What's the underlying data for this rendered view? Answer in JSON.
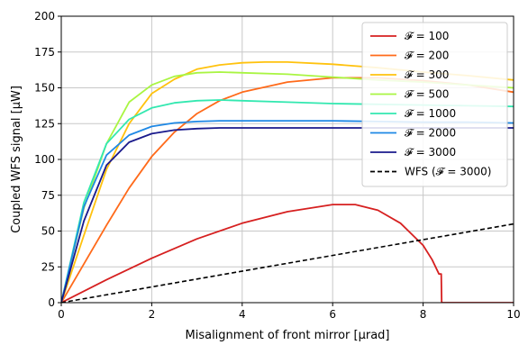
{
  "chart_data": {
    "type": "line",
    "title": "",
    "xlabel": "Misalignment of front mirror [μrad]",
    "ylabel": "Coupled WFS signal [μW]",
    "xlim": [
      0,
      10
    ],
    "ylim": [
      0,
      200
    ],
    "xticks": [
      0,
      2,
      4,
      6,
      8,
      10
    ],
    "yticks": [
      0,
      25,
      50,
      75,
      100,
      125,
      150,
      175,
      200
    ],
    "grid": true,
    "legend_position": "top-right",
    "series": [
      {
        "name": "𝓕 = 100",
        "color": "#d62020",
        "dash": "solid",
        "x": [
          0,
          1,
          2,
          3,
          4,
          5,
          6,
          6.5,
          7,
          7.5,
          8,
          8.2,
          8.35,
          8.4,
          8.41,
          9,
          10
        ],
        "y": [
          0,
          16,
          31,
          44.5,
          55.5,
          63.5,
          68.5,
          68.5,
          64.5,
          55.5,
          40,
          30,
          20,
          20,
          0,
          0,
          0
        ]
      },
      {
        "name": "𝓕 = 200",
        "color": "#ff6a1a",
        "dash": "solid",
        "x": [
          0,
          0.5,
          1,
          1.5,
          2,
          2.5,
          3,
          3.5,
          4,
          5,
          6,
          7,
          8,
          9,
          10
        ],
        "y": [
          0,
          27,
          54,
          80,
          102,
          119,
          132,
          141,
          147,
          154,
          157,
          157,
          155,
          152,
          147
        ]
      },
      {
        "name": "𝓕 = 300",
        "color": "#ffc20e",
        "dash": "solid",
        "x": [
          0,
          0.5,
          1,
          1.5,
          2,
          2.5,
          3,
          3.5,
          4,
          4.5,
          5,
          6,
          7,
          8,
          9,
          10
        ],
        "y": [
          0,
          47,
          93,
          125,
          146,
          156,
          163,
          166,
          167.5,
          168,
          168,
          166.5,
          164,
          161,
          158.5,
          155.5
        ]
      },
      {
        "name": "𝓕 = 500",
        "color": "#a9f542",
        "dash": "solid",
        "x": [
          0,
          0.5,
          1,
          1.5,
          2,
          2.5,
          3,
          3.5,
          4,
          5,
          6,
          7,
          8,
          9,
          10
        ],
        "y": [
          0,
          66,
          111,
          140,
          152,
          158,
          160.5,
          161,
          160.5,
          159.5,
          157.5,
          155.5,
          154,
          152,
          150
        ]
      },
      {
        "name": "𝓕 = 1000",
        "color": "#33e8b0",
        "dash": "solid",
        "x": [
          0,
          0.5,
          1,
          1.5,
          2,
          2.5,
          3,
          3.5,
          4,
          5,
          6,
          7,
          8,
          9,
          10
        ],
        "y": [
          0,
          70,
          111,
          128,
          136,
          139.5,
          141,
          141.5,
          141,
          140,
          139,
          138.5,
          138,
          137.5,
          137
        ]
      },
      {
        "name": "𝓕 = 2000",
        "color": "#1e88e5",
        "dash": "solid",
        "x": [
          0,
          0.5,
          1,
          1.5,
          2,
          2.5,
          3,
          3.5,
          4,
          5,
          6,
          7,
          8,
          9,
          10
        ],
        "y": [
          0,
          67,
          103,
          117,
          123,
          125.5,
          126.5,
          127,
          127,
          127,
          127,
          126.5,
          126,
          126,
          125.5
        ]
      },
      {
        "name": "𝓕 = 3000",
        "color": "#1a1a8c",
        "dash": "solid",
        "x": [
          0,
          0.5,
          1,
          1.5,
          2,
          2.5,
          3,
          3.5,
          4,
          5,
          6,
          7,
          8,
          9,
          10
        ],
        "y": [
          0,
          57,
          96,
          112,
          118,
          120.5,
          121.5,
          122,
          122,
          122,
          122,
          122,
          122,
          122,
          122
        ]
      },
      {
        "name": "WFS (𝓕 = 3000)",
        "color": "#000000",
        "dash": "dashed",
        "x": [
          0,
          10
        ],
        "y": [
          0,
          55
        ]
      }
    ]
  }
}
